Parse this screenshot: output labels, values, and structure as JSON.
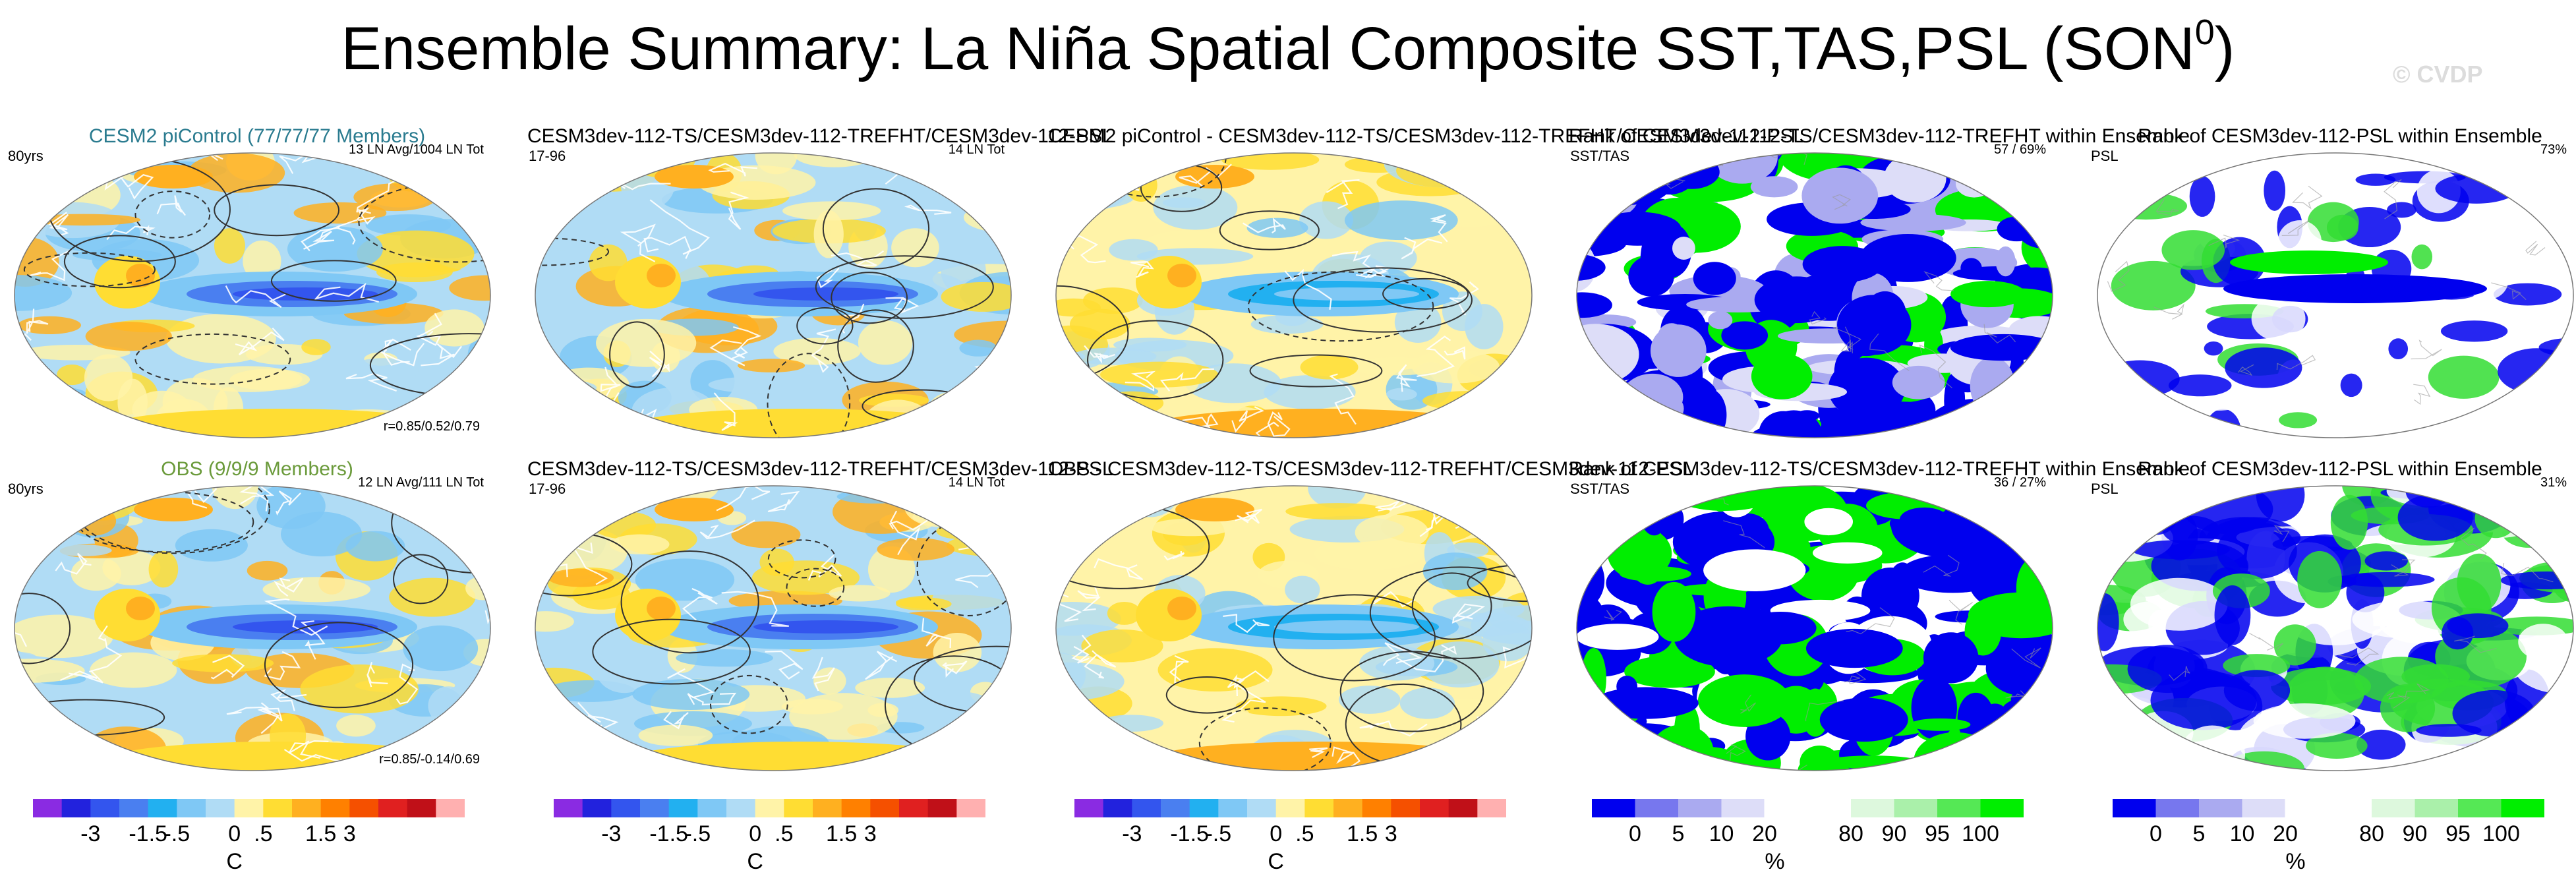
{
  "title_main": "Ensemble Summary: La Niña Spatial Composite SST,TAS,PSL (SON",
  "title_sup": "0",
  "title_close": ")",
  "watermark": "© CVDP",
  "rows": [
    {
      "panels": [
        {
          "title": "CESM2 piControl (77/77/77 Members)",
          "left": "80yrs",
          "right": "13 LN Avg/1004 LN Tot",
          "corr": "r=0.85/0.52/0.79",
          "style": "teal",
          "kind": "sst"
        },
        {
          "title": "CESM3dev-112-TS/CESM3dev-112-TREFHT/CESM3dev-112-PSL",
          "left": "17-96",
          "right": "14 LN Tot",
          "corr": "",
          "style": "",
          "kind": "sst"
        },
        {
          "title": "CESM2 piControl - CESM3dev-112-TS/CESM3dev-112-TREFHT/CESM3dev-112-PSL",
          "left": "",
          "right": "",
          "corr": "",
          "style": "",
          "kind": "diff"
        },
        {
          "title": "Rank of CESM3dev-112-TS/CESM3dev-112-TREFHT within Ensemble",
          "left": "SST/TAS",
          "right": "57 /  69%",
          "corr": "",
          "style": "",
          "kind": "rank1"
        },
        {
          "title": "Rank of CESM3dev-112-PSL within Ensemble",
          "left": "PSL",
          "right": "73%",
          "corr": "",
          "style": "",
          "kind": "rank2"
        }
      ]
    },
    {
      "panels": [
        {
          "title": "OBS (9/9/9 Members)",
          "left": "80yrs",
          "right": "12 LN Avg/111 LN Tot",
          "corr": "r=0.85/-0.14/0.69",
          "style": "green",
          "kind": "sst"
        },
        {
          "title": "CESM3dev-112-TS/CESM3dev-112-TREFHT/CESM3dev-112-PSL",
          "left": "17-96",
          "right": "14 LN Tot",
          "corr": "",
          "style": "",
          "kind": "sst"
        },
        {
          "title": "OBS - CESM3dev-112-TS/CESM3dev-112-TREFHT/CESM3dev-112-PSL",
          "left": "",
          "right": "",
          "corr": "",
          "style": "",
          "kind": "diff"
        },
        {
          "title": "Rank of CESM3dev-112-TS/CESM3dev-112-TREFHT within Ensemble",
          "left": "SST/TAS",
          "right": "36 /  27%",
          "corr": "",
          "style": "",
          "kind": "rank3"
        },
        {
          "title": "Rank of CESM3dev-112-PSL within Ensemble",
          "left": "PSL",
          "right": "31%",
          "corr": "",
          "style": "",
          "kind": "rank4"
        }
      ]
    }
  ],
  "colorbars": {
    "anomaly": {
      "unit": "C",
      "ticks": [
        "-3",
        "-1.5",
        "-.5",
        "0",
        ".5",
        "1.5",
        "3"
      ],
      "colors": [
        "#8a2be2",
        "#2222dd",
        "#3355ee",
        "#4a7ff0",
        "#22b0f0",
        "#7fc8f5",
        "#b0dcf5",
        "#fff3a8",
        "#ffdd33",
        "#ffb020",
        "#ff8000",
        "#f55000",
        "#e02020",
        "#c01018",
        "#ffb0b0"
      ]
    },
    "rank": {
      "unit": "%",
      "ticks": [
        "0",
        "5",
        "10",
        "20",
        "80",
        "90",
        "95",
        "100"
      ],
      "colors": [
        "#0000ee",
        "#7777ee",
        "#aaaaf0",
        "#ddddf8",
        "#ffffff",
        "#ffffff",
        "#ddf8dd",
        "#aaf0aa",
        "#55e855",
        "#00ee00"
      ]
    }
  },
  "chart_data": [
    {
      "type": "heatmap",
      "title": "CESM2 piControl (77/77/77 Members)",
      "variables": [
        "SST",
        "TAS",
        "PSL"
      ],
      "units": "C",
      "color_ticks": [
        -3,
        -1.5,
        -0.5,
        0,
        0.5,
        1.5,
        3
      ],
      "correlations": [
        0.85,
        0.52,
        0.79
      ]
    },
    {
      "type": "heatmap",
      "title": "CESM3dev-112 (row 1)",
      "units": "C",
      "color_ticks": [
        -3,
        -1.5,
        -0.5,
        0,
        0.5,
        1.5,
        3
      ]
    },
    {
      "type": "heatmap",
      "title": "CESM2 piControl - CESM3dev-112",
      "units": "C",
      "color_ticks": [
        -3,
        -1.5,
        -0.5,
        0,
        0.5,
        1.5,
        3
      ]
    },
    {
      "type": "heatmap",
      "title": "Rank SST/TAS (row 1)",
      "units": "%",
      "rank": [
        57,
        69
      ],
      "color_ticks": [
        0,
        5,
        10,
        20,
        80,
        90,
        95,
        100
      ]
    },
    {
      "type": "heatmap",
      "title": "Rank PSL (row 1)",
      "units": "%",
      "rank": [
        73
      ],
      "color_ticks": [
        0,
        5,
        10,
        20,
        80,
        90,
        95,
        100
      ]
    },
    {
      "type": "heatmap",
      "title": "OBS (9/9/9 Members)",
      "units": "C",
      "correlations": [
        0.85,
        -0.14,
        0.69
      ],
      "color_ticks": [
        -3,
        -1.5,
        -0.5,
        0,
        0.5,
        1.5,
        3
      ]
    },
    {
      "type": "heatmap",
      "title": "CESM3dev-112 (row 2)",
      "units": "C",
      "color_ticks": [
        -3,
        -1.5,
        -0.5,
        0,
        0.5,
        1.5,
        3
      ]
    },
    {
      "type": "heatmap",
      "title": "OBS - CESM3dev-112",
      "units": "C",
      "color_ticks": [
        -3,
        -1.5,
        -0.5,
        0,
        0.5,
        1.5,
        3
      ]
    },
    {
      "type": "heatmap",
      "title": "Rank SST/TAS (row 2)",
      "units": "%",
      "rank": [
        36,
        27
      ],
      "color_ticks": [
        0,
        5,
        10,
        20,
        80,
        90,
        95,
        100
      ]
    },
    {
      "type": "heatmap",
      "title": "Rank PSL (row 2)",
      "units": "%",
      "rank": [
        31
      ],
      "color_ticks": [
        0,
        5,
        10,
        20,
        80,
        90,
        95,
        100
      ]
    }
  ]
}
